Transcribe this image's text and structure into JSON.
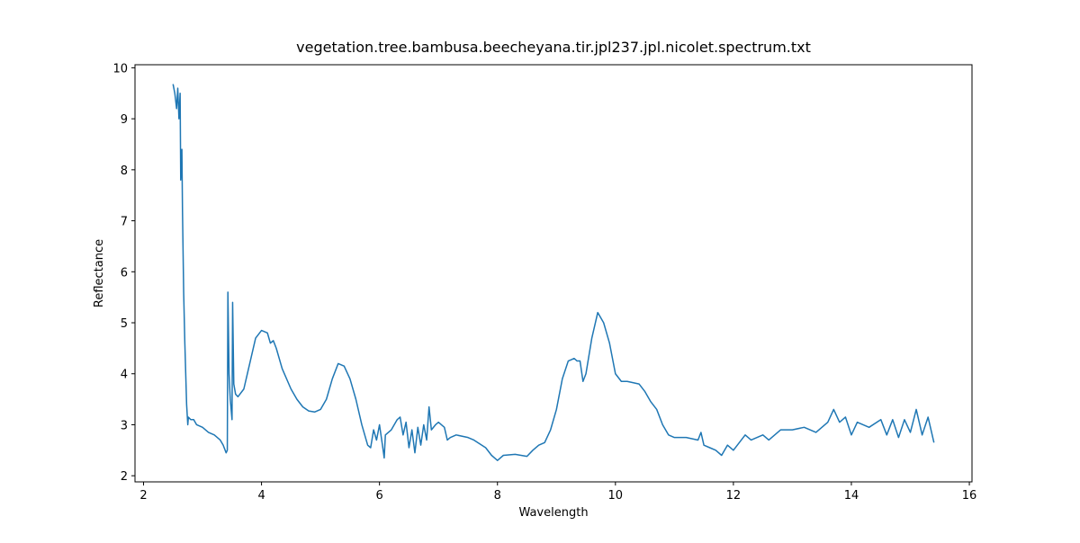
{
  "chart_data": {
    "type": "line",
    "title": "vegetation.tree.bambusa.beecheyana.tir.jpl237.jpl.nicolet.spectrum.txt",
    "xlabel": "Wavelength",
    "ylabel": "Reflectance",
    "xlim": [
      1.855,
      16.045
    ],
    "ylim": [
      1.88,
      10.06
    ],
    "xticks": [
      2,
      4,
      6,
      8,
      10,
      12,
      14,
      16
    ],
    "yticks": [
      2,
      3,
      4,
      5,
      6,
      7,
      8,
      9,
      10
    ],
    "series": [
      {
        "color": "#1f77b4",
        "x": [
          2.5,
          2.53,
          2.56,
          2.58,
          2.6,
          2.62,
          2.63,
          2.65,
          2.66,
          2.68,
          2.7,
          2.71,
          2.73,
          2.75,
          2.76,
          2.8,
          2.85,
          2.9,
          3.0,
          3.1,
          3.2,
          3.3,
          3.35,
          3.4,
          3.42,
          3.43,
          3.45,
          3.47,
          3.5,
          3.51,
          3.53,
          3.56,
          3.6,
          3.7,
          3.8,
          3.9,
          4.0,
          4.1,
          4.15,
          4.2,
          4.25,
          4.35,
          4.5,
          4.6,
          4.7,
          4.8,
          4.9,
          5.0,
          5.1,
          5.2,
          5.3,
          5.4,
          5.5,
          5.6,
          5.7,
          5.8,
          5.85,
          5.9,
          5.95,
          6.0,
          6.05,
          6.08,
          6.1,
          6.2,
          6.3,
          6.35,
          6.4,
          6.45,
          6.5,
          6.55,
          6.6,
          6.65,
          6.7,
          6.75,
          6.8,
          6.84,
          6.88,
          6.95,
          7.0,
          7.1,
          7.15,
          7.2,
          7.3,
          7.5,
          7.6,
          7.8,
          7.9,
          8.0,
          8.1,
          8.3,
          8.5,
          8.6,
          8.7,
          8.8,
          8.9,
          9.0,
          9.1,
          9.2,
          9.3,
          9.35,
          9.4,
          9.45,
          9.5,
          9.6,
          9.7,
          9.8,
          9.9,
          10.0,
          10.1,
          10.2,
          10.4,
          10.5,
          10.6,
          10.7,
          10.8,
          10.9,
          11.0,
          11.2,
          11.4,
          11.45,
          11.5,
          11.6,
          11.7,
          11.8,
          11.9,
          12.0,
          12.1,
          12.2,
          12.3,
          12.5,
          12.6,
          12.8,
          13.0,
          13.2,
          13.4,
          13.6,
          13.7,
          13.8,
          13.9,
          14.0,
          14.1,
          14.3,
          14.5,
          14.6,
          14.7,
          14.8,
          14.9,
          15.0,
          15.1,
          15.2,
          15.3,
          15.4
        ],
        "values": [
          9.68,
          9.5,
          9.2,
          9.6,
          9.0,
          9.5,
          7.8,
          8.4,
          7.2,
          5.6,
          4.6,
          4.2,
          3.4,
          3.0,
          3.15,
          3.1,
          3.1,
          3.0,
          2.95,
          2.85,
          2.8,
          2.7,
          2.6,
          2.45,
          2.5,
          5.6,
          4.0,
          3.5,
          3.1,
          5.4,
          3.8,
          3.6,
          3.55,
          3.7,
          4.2,
          4.7,
          4.85,
          4.8,
          4.6,
          4.65,
          4.5,
          4.1,
          3.7,
          3.5,
          3.35,
          3.27,
          3.25,
          3.3,
          3.5,
          3.9,
          4.2,
          4.15,
          3.9,
          3.5,
          3.0,
          2.6,
          2.55,
          2.9,
          2.7,
          3.0,
          2.6,
          2.35,
          2.8,
          2.9,
          3.1,
          3.15,
          2.8,
          3.05,
          2.55,
          2.9,
          2.45,
          2.95,
          2.6,
          3.0,
          2.7,
          3.35,
          2.9,
          3.0,
          3.05,
          2.95,
          2.7,
          2.75,
          2.8,
          2.75,
          2.7,
          2.55,
          2.4,
          2.3,
          2.4,
          2.42,
          2.38,
          2.5,
          2.6,
          2.65,
          2.9,
          3.3,
          3.9,
          4.25,
          4.3,
          4.25,
          4.25,
          3.85,
          4.0,
          4.7,
          5.2,
          5.0,
          4.6,
          4.0,
          3.85,
          3.85,
          3.8,
          3.65,
          3.45,
          3.3,
          3.0,
          2.8,
          2.75,
          2.75,
          2.7,
          2.85,
          2.6,
          2.55,
          2.5,
          2.4,
          2.6,
          2.5,
          2.65,
          2.8,
          2.7,
          2.8,
          2.7,
          2.9,
          2.9,
          2.95,
          2.85,
          3.05,
          3.3,
          3.05,
          3.15,
          2.8,
          3.05,
          2.95,
          3.1,
          2.8,
          3.1,
          2.75,
          3.1,
          2.85,
          3.3,
          2.8,
          3.15,
          2.65
        ]
      }
    ]
  }
}
